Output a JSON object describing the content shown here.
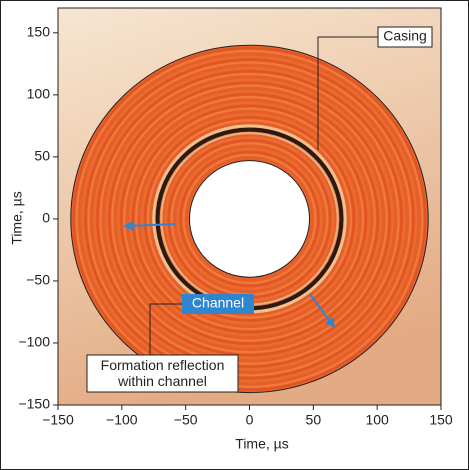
{
  "chart_data": {
    "type": "polar-image",
    "x_label": "Time, µs",
    "y_label": "Time, µs",
    "xlim": [
      -150,
      150
    ],
    "ylim": [
      -150,
      170
    ],
    "xticks": [
      {
        "value": -150,
        "label": "−150"
      },
      {
        "value": -100,
        "label": "−100"
      },
      {
        "value": -50,
        "label": "−50"
      },
      0,
      50,
      100,
      150
    ],
    "yticks": [
      {
        "value": -150,
        "label": "−150"
      },
      {
        "value": -100,
        "label": "−100"
      },
      {
        "value": -50,
        "label": "−50"
      },
      0,
      50,
      100,
      150
    ],
    "outer_radius": 140,
    "casing_radius": 72,
    "inner_radius": 47,
    "annotations": [
      "Casing",
      "Channel",
      "Formation reflection within channel"
    ]
  }
}
